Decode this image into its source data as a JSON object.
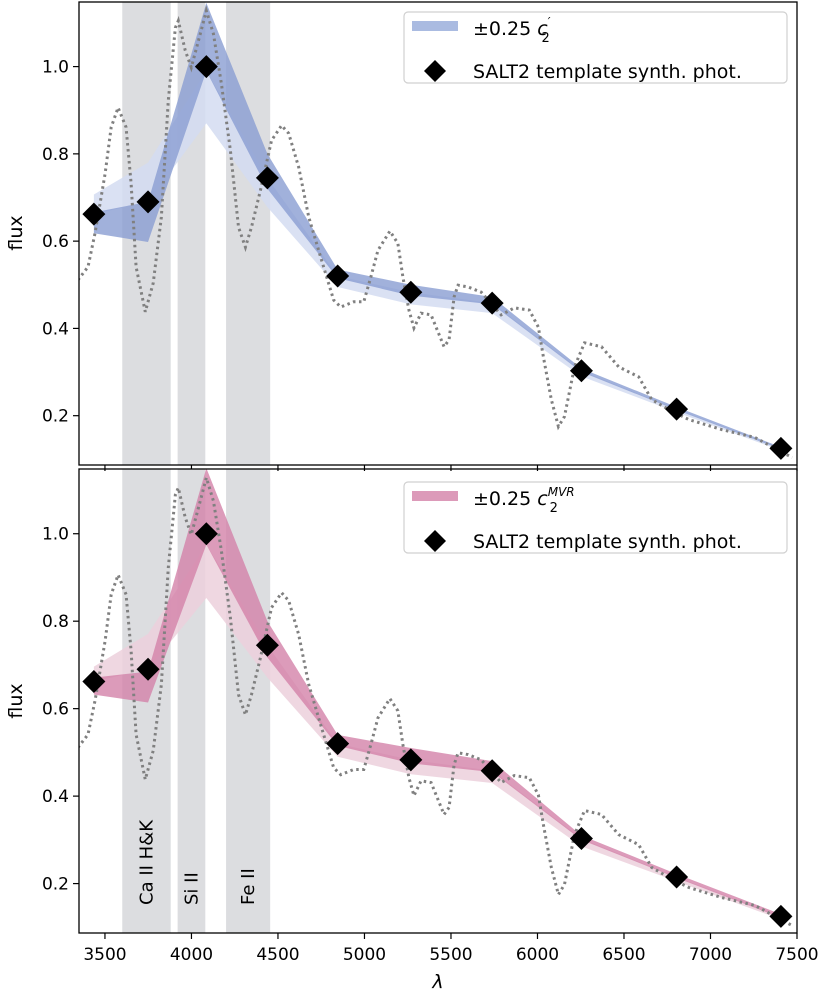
{
  "chart_data": {
    "type": "area",
    "xlabel": "λ",
    "ylabel": "flux",
    "xlim": [
      3350,
      7500
    ],
    "ylim": [
      0.087,
      1.148
    ],
    "xticks": [
      3500,
      4000,
      4500,
      5000,
      5500,
      6000,
      6500,
      7000,
      7500
    ],
    "yticks": [
      0.2,
      0.4,
      0.6,
      0.8,
      1.0
    ],
    "ytick_labels": [
      "0.2",
      "0.4",
      "0.6",
      "0.8",
      "1.0"
    ],
    "grid": false,
    "line_regions": [
      {
        "label": "Ca II H&K",
        "range": [
          3600,
          3880
        ]
      },
      {
        "label": "Si II",
        "range": [
          3920,
          4080
        ]
      },
      {
        "label": "Fe II",
        "range": [
          4200,
          4455
        ]
      }
    ],
    "region_color": "#dcdde0",
    "spectrum": {
      "style": "dotted",
      "color": "#808080",
      "x": [
        3344,
        3402,
        3443,
        3501,
        3536,
        3576,
        3622,
        3651,
        3680,
        3733,
        3779,
        3826,
        3866,
        3907,
        3924,
        3964,
        3999,
        4051,
        4086,
        4127,
        4173,
        4225,
        4272,
        4312,
        4347,
        4399,
        4463,
        4521,
        4562,
        4620,
        4678,
        4747,
        4822,
        4863,
        4938,
        4996,
        5037,
        5078,
        5147,
        5193,
        5222,
        5257,
        5286,
        5327,
        5385,
        5425,
        5460,
        5489,
        5518,
        5541,
        5599,
        5675,
        5790,
        5866,
        5953,
        6005,
        6034,
        6080,
        6121,
        6156,
        6214,
        6272,
        6370,
        6469,
        6585,
        6660,
        6759,
        6875,
        7066,
        7257,
        7472
      ],
      "y": [
        0.511,
        0.541,
        0.619,
        0.755,
        0.861,
        0.906,
        0.861,
        0.733,
        0.541,
        0.438,
        0.504,
        0.655,
        0.922,
        1.089,
        1.105,
        1.037,
        0.998,
        1.075,
        1.128,
        1.075,
        0.961,
        0.808,
        0.632,
        0.586,
        0.632,
        0.717,
        0.831,
        0.865,
        0.847,
        0.769,
        0.655,
        0.563,
        0.465,
        0.449,
        0.461,
        0.461,
        0.518,
        0.579,
        0.623,
        0.595,
        0.518,
        0.442,
        0.401,
        0.435,
        0.431,
        0.392,
        0.358,
        0.374,
        0.472,
        0.499,
        0.495,
        0.483,
        0.431,
        0.447,
        0.442,
        0.403,
        0.335,
        0.237,
        0.175,
        0.198,
        0.312,
        0.367,
        0.358,
        0.312,
        0.289,
        0.237,
        0.214,
        0.191,
        0.168,
        0.15,
        0.104
      ]
    },
    "synth_phot": {
      "x": [
        3436,
        3749,
        4086,
        4439,
        4845,
        5268,
        5738,
        6254,
        6804,
        7407
      ],
      "y": [
        0.662,
        0.69,
        1.0,
        0.745,
        0.52,
        0.483,
        0.458,
        0.303,
        0.215,
        0.125
      ]
    },
    "panels": [
      {
        "legend": {
          "prefix": "±0.25 ",
          "var": "c",
          "sup": "′",
          "sub": "2",
          "marker_label": "SALT2 template synth. phot."
        },
        "legend_color": "#aabbe1",
        "dark_color": "#8a9dd2",
        "light_color": "#d3dcf1",
        "dark_band": {
          "upper": [
            0.666,
            0.69,
            1.146,
            0.8,
            0.535,
            0.5,
            0.472,
            0.308,
            0.22,
            0.128
          ],
          "lower": [
            0.618,
            0.598,
            0.99,
            0.72,
            0.515,
            0.475,
            0.455,
            0.3,
            0.213,
            0.123
          ]
        },
        "light_band": {
          "upper": [
            0.707,
            0.78,
            0.99,
            0.745,
            0.52,
            0.483,
            0.458,
            0.303,
            0.215,
            0.125
          ],
          "lower": [
            0.662,
            0.69,
            0.87,
            0.678,
            0.495,
            0.455,
            0.435,
            0.29,
            0.208,
            0.12
          ]
        }
      },
      {
        "legend": {
          "prefix": "±0.25 ",
          "var": "c",
          "sup": "MVR",
          "sub": "2",
          "marker_label": "SALT2 template synth. phot."
        },
        "legend_color": "#dc9ab9",
        "dark_color": "#d382a9",
        "light_color": "#ecd0dc",
        "dark_band": {
          "upper": [
            0.671,
            0.685,
            1.15,
            0.8,
            0.54,
            0.51,
            0.48,
            0.31,
            0.222,
            0.13
          ],
          "lower": [
            0.632,
            0.614,
            0.975,
            0.717,
            0.515,
            0.475,
            0.455,
            0.3,
            0.213,
            0.122
          ]
        },
        "light_band": {
          "upper": [
            0.696,
            0.771,
            0.975,
            0.745,
            0.52,
            0.483,
            0.458,
            0.303,
            0.215,
            0.125
          ],
          "lower": [
            0.662,
            0.69,
            0.853,
            0.671,
            0.49,
            0.45,
            0.43,
            0.285,
            0.205,
            0.118
          ]
        }
      }
    ]
  }
}
